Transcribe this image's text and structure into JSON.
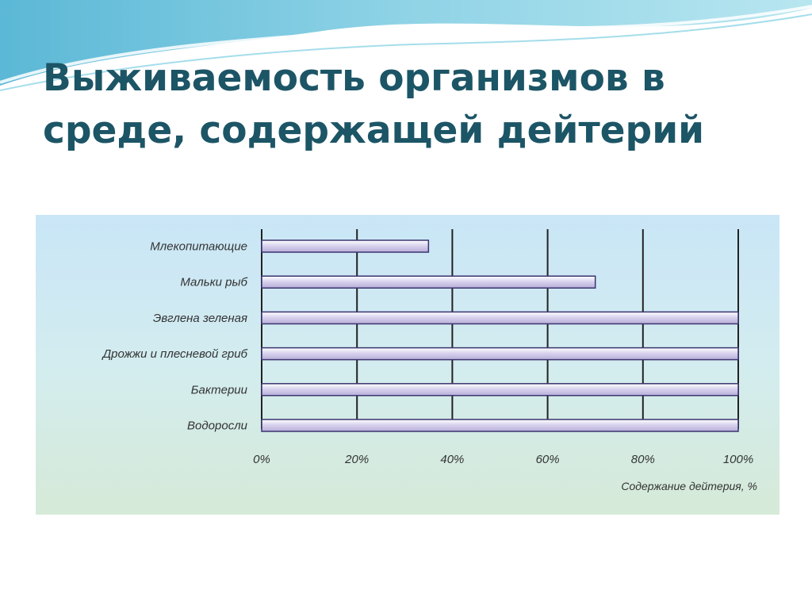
{
  "slide": {
    "title_lines": [
      "Выживаемость организмов в",
      "среде, содержащей дейтерий"
    ]
  },
  "colors": {
    "title": "#1c5566",
    "bar_fill": "#b7aed8",
    "bar_stroke": "#3b3470",
    "grid": "#222222"
  },
  "chart_data": {
    "type": "bar",
    "orientation": "horizontal",
    "title": "",
    "xlabel": "Содержание дейтерия, %",
    "ylabel": "",
    "categories": [
      "Млекопитающие",
      "Мальки рыб",
      "Эвглена зеленая",
      "Дрожжи и плесневой гриб",
      "Бактерии",
      "Водоросли"
    ],
    "values": [
      35,
      70,
      100,
      100,
      100,
      100
    ],
    "xlim": [
      0,
      100
    ],
    "ticks": [
      0,
      20,
      40,
      60,
      80,
      100
    ],
    "tick_labels": [
      "0%",
      "20%",
      "40%",
      "60%",
      "80%",
      "100%"
    ],
    "grid": true,
    "legend": "none"
  }
}
